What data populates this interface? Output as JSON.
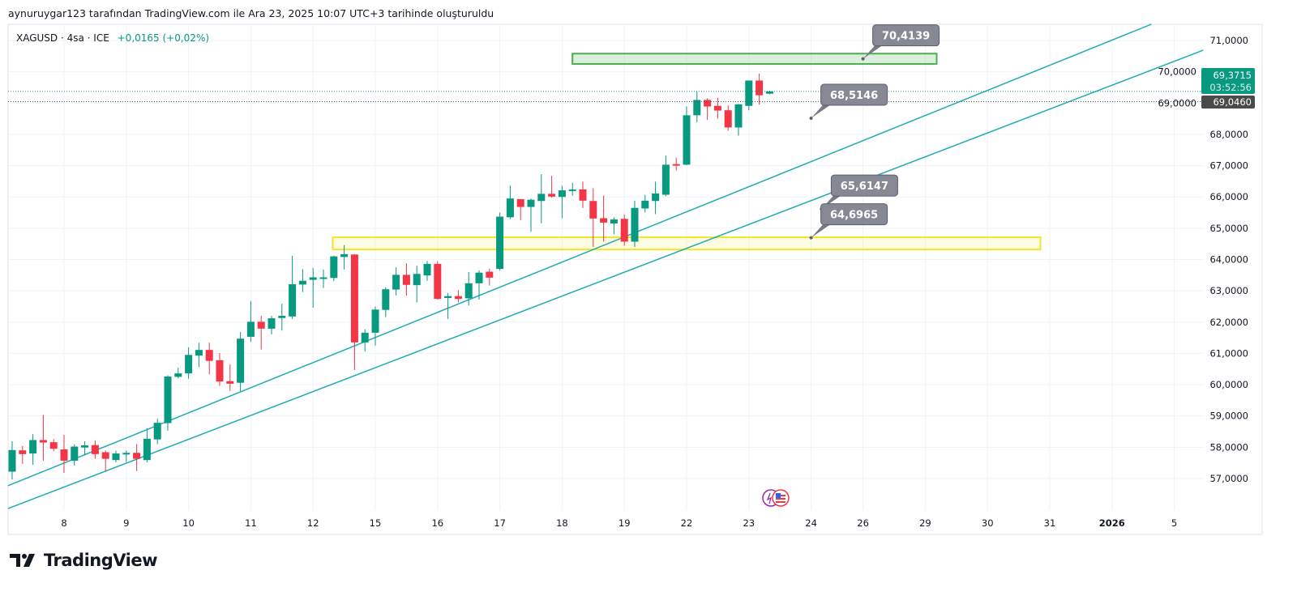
{
  "header": {
    "attribution": "aynuruygar123 tarafından TradingView.com ile Ara 23, 2025 10:07 UTC+3 tarihinde oluşturuldu",
    "symbol": "XAGUSD · 4sa · ICE",
    "change": "+0,0165 (+0,02%)"
  },
  "footer": {
    "logo_text": "TradingView"
  },
  "colors": {
    "up": "#089981",
    "down": "#f23645",
    "trendline": "#22aab5",
    "grid": "#f0f3fa"
  },
  "chart_data": {
    "type": "candlestick",
    "title": "XAGUSD · 4sa · ICE",
    "ylim": [
      57,
      71
    ],
    "y_ticks": [
      "71,0000",
      "70,0000",
      "69,0000",
      "68,0000",
      "67,0000",
      "66,0000",
      "65,0000",
      "64,0000",
      "63,0000",
      "62,0000",
      "61,0000",
      "60,0000",
      "59,0000",
      "58,0000",
      "57,0000"
    ],
    "y_tick_values": [
      71,
      70,
      69,
      68,
      67,
      66,
      65,
      64,
      63,
      62,
      61,
      60,
      59,
      58,
      57
    ],
    "x_ticks": [
      {
        "label": "8",
        "bar": 5
      },
      {
        "label": "9",
        "bar": 11
      },
      {
        "label": "10",
        "bar": 17
      },
      {
        "label": "11",
        "bar": 23
      },
      {
        "label": "12",
        "bar": 29
      },
      {
        "label": "15",
        "bar": 35
      },
      {
        "label": "16",
        "bar": 41
      },
      {
        "label": "17",
        "bar": 47
      },
      {
        "label": "18",
        "bar": 53
      },
      {
        "label": "19",
        "bar": 59
      },
      {
        "label": "22",
        "bar": 65
      },
      {
        "label": "23",
        "bar": 71
      },
      {
        "label": "24",
        "bar": 77
      },
      {
        "label": "26",
        "bar": 82
      },
      {
        "label": "29",
        "bar": 88
      },
      {
        "label": "30",
        "bar": 94
      },
      {
        "label": "31",
        "bar": 100
      },
      {
        "label": "2026",
        "bar": 106,
        "bold": true
      },
      {
        "label": "5",
        "bar": 112
      }
    ],
    "candles_ohlc": [
      [
        57.22,
        58.19,
        56.97,
        57.91
      ],
      [
        57.9,
        58.04,
        57.47,
        57.78
      ],
      [
        57.8,
        58.42,
        57.44,
        58.23
      ],
      [
        58.23,
        59.03,
        57.57,
        58.15
      ],
      [
        58.16,
        58.26,
        57.87,
        57.95
      ],
      [
        57.93,
        58.4,
        57.18,
        57.57
      ],
      [
        57.57,
        58.09,
        57.41,
        58.02
      ],
      [
        57.99,
        58.19,
        57.74,
        58.06
      ],
      [
        58.07,
        58.22,
        57.63,
        57.78
      ],
      [
        57.84,
        57.9,
        57.23,
        57.63
      ],
      [
        57.59,
        57.89,
        57.52,
        57.8
      ],
      [
        57.78,
        57.89,
        57.53,
        57.82
      ],
      [
        57.82,
        58.1,
        57.24,
        57.63
      ],
      [
        57.59,
        58.6,
        57.52,
        58.27
      ],
      [
        58.25,
        58.91,
        58.1,
        58.78
      ],
      [
        58.77,
        60.3,
        58.53,
        60.26
      ],
      [
        60.25,
        60.54,
        60.2,
        60.36
      ],
      [
        60.36,
        61.19,
        60.19,
        60.95
      ],
      [
        60.93,
        61.34,
        60.56,
        61.11
      ],
      [
        61.11,
        61.34,
        60.33,
        60.76
      ],
      [
        60.78,
        61.01,
        59.96,
        60.1
      ],
      [
        60.11,
        60.65,
        59.8,
        60.03
      ],
      [
        60.06,
        61.68,
        59.79,
        61.47
      ],
      [
        61.53,
        62.67,
        61.37,
        62.01
      ],
      [
        62.01,
        62.2,
        61.12,
        61.79
      ],
      [
        61.79,
        62.2,
        61.61,
        62.12
      ],
      [
        62.13,
        62.59,
        61.73,
        62.2
      ],
      [
        62.18,
        64.12,
        62.1,
        63.21
      ],
      [
        63.2,
        63.69,
        62.96,
        63.32
      ],
      [
        63.35,
        63.73,
        62.46,
        63.43
      ],
      [
        63.41,
        63.68,
        63.09,
        63.43
      ],
      [
        63.41,
        64.12,
        63.31,
        64.1
      ],
      [
        64.08,
        64.46,
        63.68,
        64.17
      ],
      [
        64.16,
        64.17,
        60.47,
        61.35
      ],
      [
        61.35,
        61.77,
        61.06,
        61.66
      ],
      [
        61.66,
        62.5,
        61.25,
        62.4
      ],
      [
        62.39,
        63.11,
        62.16,
        63.05
      ],
      [
        63.04,
        63.75,
        62.85,
        63.51
      ],
      [
        63.51,
        63.88,
        62.85,
        63.19
      ],
      [
        63.18,
        63.8,
        62.63,
        63.54
      ],
      [
        63.49,
        63.95,
        63.32,
        63.86
      ],
      [
        63.86,
        63.95,
        62.72,
        62.74
      ],
      [
        62.77,
        62.93,
        62.1,
        62.83
      ],
      [
        62.83,
        63.02,
        62.63,
        62.74
      ],
      [
        62.76,
        63.6,
        62.53,
        63.24
      ],
      [
        63.24,
        63.65,
        62.72,
        63.58
      ],
      [
        63.61,
        63.71,
        63.17,
        63.42
      ],
      [
        63.7,
        65.5,
        63.65,
        65.37
      ],
      [
        65.35,
        66.36,
        65.29,
        65.95
      ],
      [
        65.93,
        65.93,
        65.26,
        65.68
      ],
      [
        65.68,
        65.95,
        64.89,
        65.91
      ],
      [
        65.87,
        66.73,
        65.16,
        66.1
      ],
      [
        66.1,
        66.67,
        65.98,
        66.01
      ],
      [
        66.0,
        66.36,
        65.32,
        66.21
      ],
      [
        66.22,
        66.45,
        66.04,
        66.24
      ],
      [
        66.24,
        66.49,
        65.65,
        65.88
      ],
      [
        65.87,
        66.28,
        64.4,
        65.31
      ],
      [
        65.32,
        66.04,
        64.57,
        65.18
      ],
      [
        65.15,
        65.35,
        64.81,
        65.28
      ],
      [
        65.3,
        65.44,
        64.44,
        64.57
      ],
      [
        64.57,
        65.88,
        64.4,
        65.65
      ],
      [
        65.63,
        66.06,
        65.5,
        65.88
      ],
      [
        65.87,
        66.49,
        65.45,
        66.11
      ],
      [
        66.07,
        67.32,
        66.02,
        67.03
      ],
      [
        67.05,
        67.25,
        66.84,
        67.01
      ],
      [
        67.03,
        68.89,
        67.01,
        68.61
      ],
      [
        68.61,
        69.36,
        68.39,
        69.1
      ],
      [
        69.1,
        69.15,
        68.46,
        68.89
      ],
      [
        68.91,
        69.17,
        68.5,
        68.76
      ],
      [
        68.77,
        68.93,
        68.11,
        68.22
      ],
      [
        68.22,
        68.97,
        67.96,
        68.96
      ],
      [
        68.91,
        69.72,
        68.77,
        69.72
      ],
      [
        69.72,
        69.94,
        68.95,
        69.25
      ],
      [
        69.3,
        69.4,
        69.28,
        69.3715
      ]
    ],
    "last_price": {
      "value": 69.3715,
      "label": "69,3715",
      "countdown": "03:52:56"
    },
    "prev_close": {
      "value": 69.046,
      "label": "69,0460"
    },
    "trendlines": [
      {
        "from": {
          "bar": -0.4,
          "price": 56.77
        },
        "to": {
          "bar": 109.8,
          "price": 71.52
        }
      },
      {
        "from": {
          "bar": -0.4,
          "price": 56.04
        },
        "to": {
          "bar": 114.8,
          "price": 70.69
        }
      }
    ],
    "zones": [
      {
        "name": "resistance-zone",
        "from_bar": 54,
        "to_bar": 89.1,
        "top": 70.58,
        "bottom": 70.25,
        "stroke": "#4caf50",
        "fill": "rgba(76,175,80,0.2)"
      },
      {
        "name": "support-zone",
        "from_bar": 30.9,
        "to_bar": 99.1,
        "top": 64.71,
        "bottom": 64.32,
        "stroke": "#f5e52a",
        "fill": "rgba(255,241,118,0.2)"
      }
    ],
    "callouts": [
      {
        "label": "70,4139",
        "bar": 82,
        "price": 70.4139
      },
      {
        "label": "68,5146",
        "bar": 77,
        "price": 68.5146
      },
      {
        "label": "65,6147",
        "bar": 78,
        "price": 65.6147
      },
      {
        "label": "64,6965",
        "bar": 77,
        "price": 64.6965
      }
    ]
  }
}
